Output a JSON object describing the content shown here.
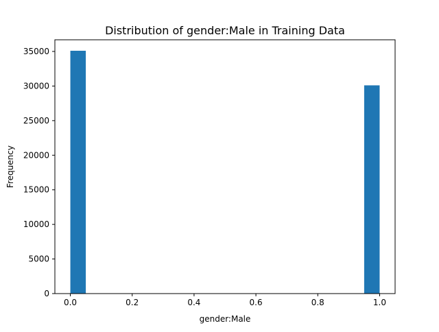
{
  "chart_data": {
    "type": "bar",
    "title": "Distribution of gender:Male in Training Data",
    "xlabel": "gender:Male",
    "ylabel": "Frequency",
    "xlim": [
      -0.05,
      1.05
    ],
    "ylim": [
      0,
      35000
    ],
    "x_ticks": [
      "0.0",
      "0.2",
      "0.4",
      "0.6",
      "0.8",
      "1.0"
    ],
    "y_ticks": [
      "0",
      "5000",
      "10000",
      "15000",
      "20000",
      "25000",
      "30000",
      "35000"
    ],
    "bins": [
      {
        "x0": 0.0,
        "x1": 0.05,
        "value": 35100
      },
      {
        "x0": 0.95,
        "x1": 1.0,
        "value": 30100
      }
    ],
    "bar_color": "#1f77b4",
    "grid": false,
    "legend": "none"
  }
}
